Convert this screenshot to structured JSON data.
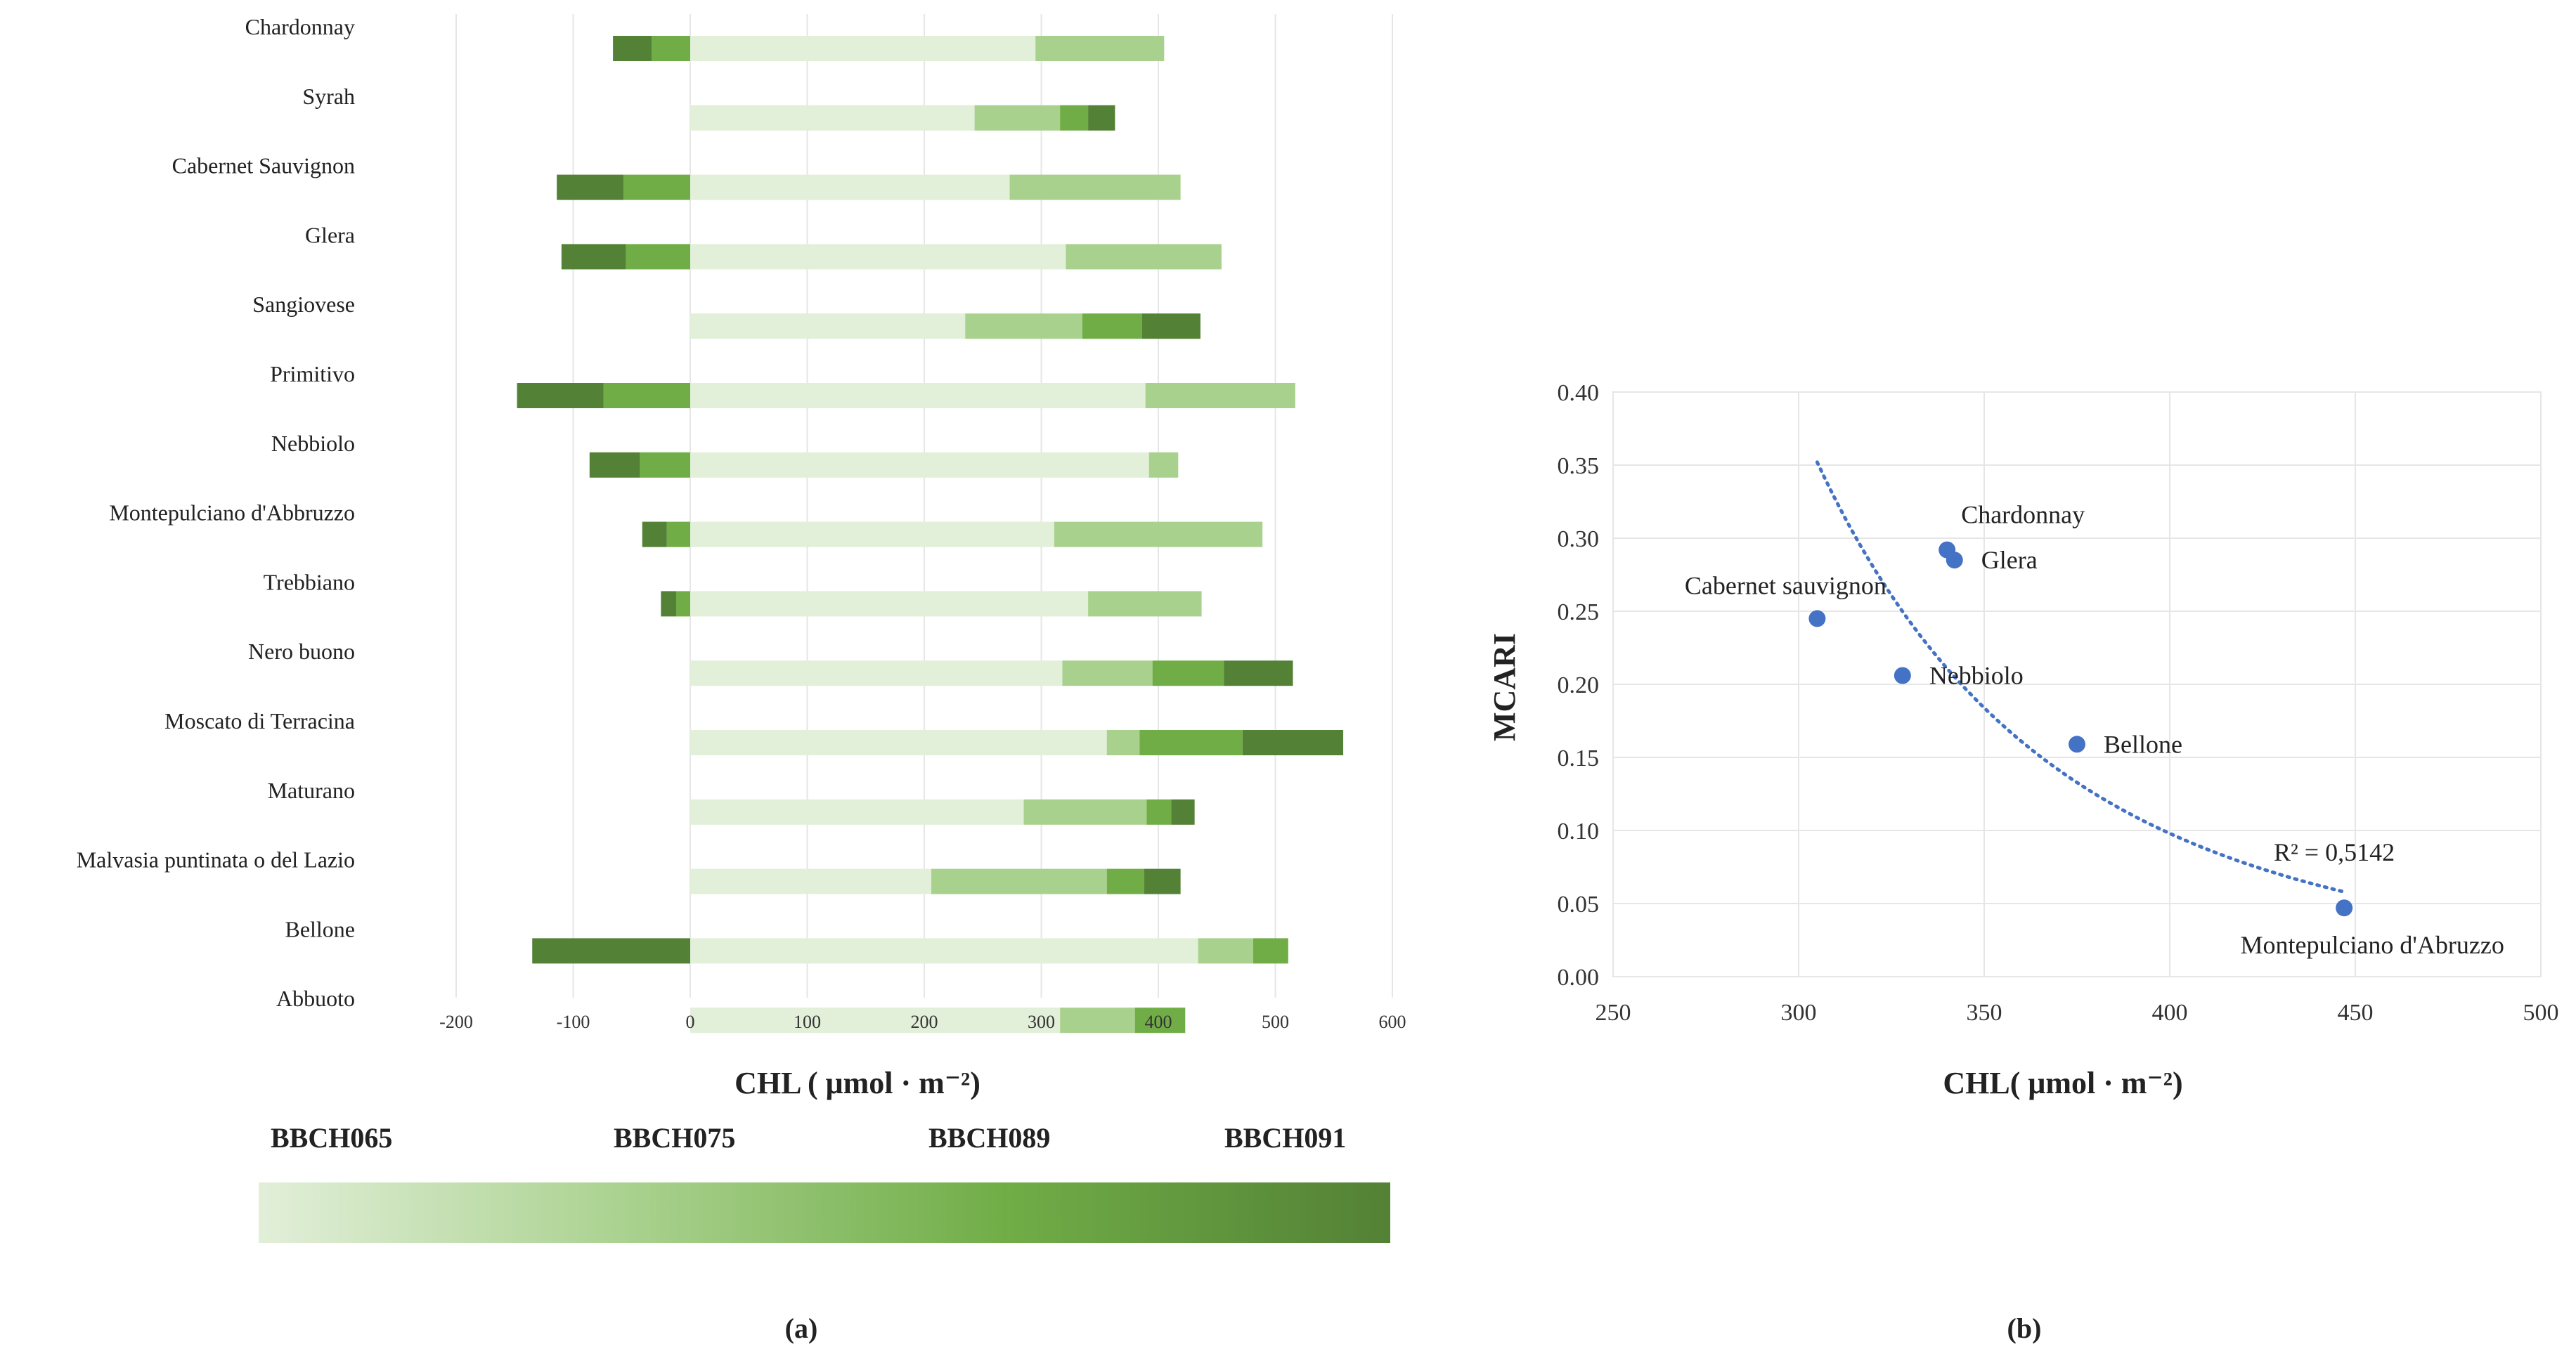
{
  "colors": {
    "stage1": "#e2efd9",
    "stage2": "#a9d18e",
    "stage3": "#70ad47",
    "stage4": "#538135",
    "point": "#4472c4",
    "grid": "#e6e6e6",
    "axis": "#bfbfbf"
  },
  "chart_data": [
    {
      "type": "bar",
      "orientation": "horizontal",
      "stacked": true,
      "panel_label": "(a)",
      "xlabel": "CHL ( μmol · m⁻²)",
      "xlim": [
        -200,
        600
      ],
      "xticks": [
        "-200",
        "-100",
        "0",
        "100",
        "200",
        "300",
        "400",
        "500",
        "600"
      ],
      "xtick_values": [
        -200,
        -100,
        0,
        100,
        200,
        300,
        400,
        500,
        600
      ],
      "categories": [
        "Chardonnay",
        "Syrah",
        "Cabernet Sauvignon",
        "Glera",
        "Sangiovese",
        "Primitivo",
        "Nebbiolo",
        "Montepulciano d'Abbruzzo",
        "Trebbiano",
        "Nero buono",
        "Moscato di Terracina",
        "Maturano",
        "Malvasia puntinata o del Lazio",
        "Bellone",
        "Abbuoto"
      ],
      "series": [
        {
          "name": "BBCH065",
          "values": [
            295,
            243,
            273,
            321,
            235,
            389,
            392,
            311,
            340,
            318,
            356,
            285,
            206,
            434,
            316
          ]
        },
        {
          "name": "BBCH075",
          "values": [
            110,
            73,
            146,
            133,
            100,
            128,
            25,
            178,
            97,
            77,
            28,
            105,
            150,
            47,
            64
          ]
        },
        {
          "name": "BBCH089",
          "values": [
            -33,
            24,
            -57,
            -55,
            51,
            -74,
            -43,
            -20,
            -12,
            61,
            88,
            21,
            32,
            30,
            43
          ]
        },
        {
          "name": "BBCH091",
          "values": [
            -33,
            23,
            -57,
            -55,
            50,
            -74,
            -43,
            -21,
            -13,
            59,
            86,
            20,
            31,
            -135,
            0
          ]
        }
      ],
      "legend": {
        "type": "gradient-bar",
        "labels": [
          "BBCH065",
          "BBCH075",
          "BBCH089",
          "BBCH091"
        ],
        "placement": "bottom"
      }
    },
    {
      "type": "scatter",
      "panel_label": "(b)",
      "xlabel": "CHL( μmol · m⁻²)",
      "ylabel": "MCARI",
      "xlim": [
        250,
        500
      ],
      "ylim": [
        0.0,
        0.4
      ],
      "xticks": [
        "250",
        "300",
        "350",
        "400",
        "450",
        "500"
      ],
      "xtick_values": [
        250,
        300,
        350,
        400,
        450,
        500
      ],
      "yticks": [
        "0.00",
        "0.05",
        "0.10",
        "0.15",
        "0.20",
        "0.25",
        "0.30",
        "0.35",
        "0.40"
      ],
      "ytick_values": [
        0.0,
        0.05,
        0.1,
        0.15,
        0.2,
        0.25,
        0.3,
        0.35,
        0.4
      ],
      "points": [
        {
          "label": "Chardonnay",
          "x": 340,
          "y": 0.292,
          "label_pos": "above-right"
        },
        {
          "label": "Glera",
          "x": 342,
          "y": 0.285,
          "label_pos": "right"
        },
        {
          "label": "Cabernet sauvignon",
          "x": 305,
          "y": 0.245,
          "label_pos": "above"
        },
        {
          "label": "Nebbiolo",
          "x": 328,
          "y": 0.206,
          "label_pos": "right"
        },
        {
          "label": "Bellone",
          "x": 375,
          "y": 0.159,
          "label_pos": "right"
        },
        {
          "label": "Montepulciano d'Abruzzo",
          "x": 447,
          "y": 0.047,
          "label_pos": "below"
        }
      ],
      "trendline": {
        "type": "power",
        "style": "dotted",
        "x_range": [
          305,
          447
        ],
        "r2_label": "R² = 0,5142"
      }
    }
  ]
}
